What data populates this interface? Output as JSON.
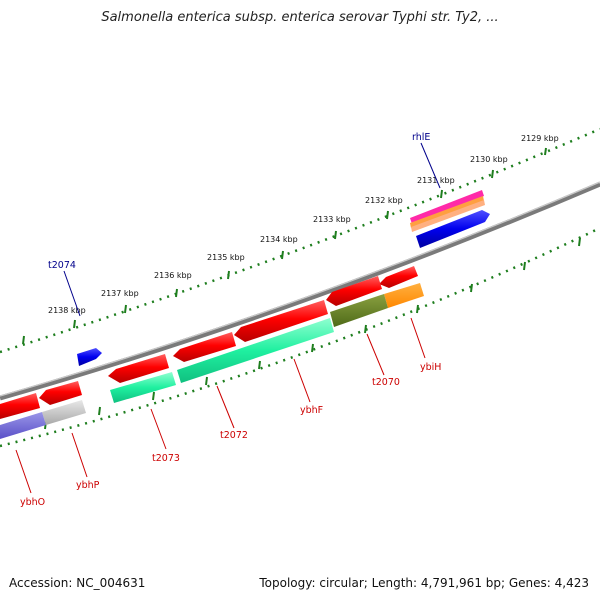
{
  "title": "Salmonella enterica subsp. enterica serovar Typhi str. Ty2, ...",
  "accession": "Accession: NC_004631",
  "summary": "Topology: circular; Length: 4,791,961 bp; Genes: 4,423",
  "colors": {
    "forward_strand": "#0000ee",
    "reverse_strand": "#e00000",
    "backbone": "#777777",
    "ticks": "#1e7e1e",
    "rna": "#00ee99"
  },
  "scale_labels": [
    "2129 kbp",
    "2130 kbp",
    "2131 kbp",
    "2132 kbp",
    "2133 kbp",
    "2134 kbp",
    "2135 kbp",
    "2136 kbp",
    "2137 kbp",
    "2138 kbp"
  ],
  "genes": [
    {
      "name": "rhlE",
      "strand": "forward"
    },
    {
      "name": "t2074",
      "strand": "forward"
    },
    {
      "name": "t2070",
      "strand": "reverse"
    },
    {
      "name": "ybiH",
      "strand": "reverse"
    },
    {
      "name": "ybhF",
      "strand": "reverse"
    },
    {
      "name": "t2072",
      "strand": "reverse"
    },
    {
      "name": "t2073",
      "strand": "reverse"
    },
    {
      "name": "ybhP",
      "strand": "reverse"
    },
    {
      "name": "ybhO",
      "strand": "reverse"
    }
  ]
}
